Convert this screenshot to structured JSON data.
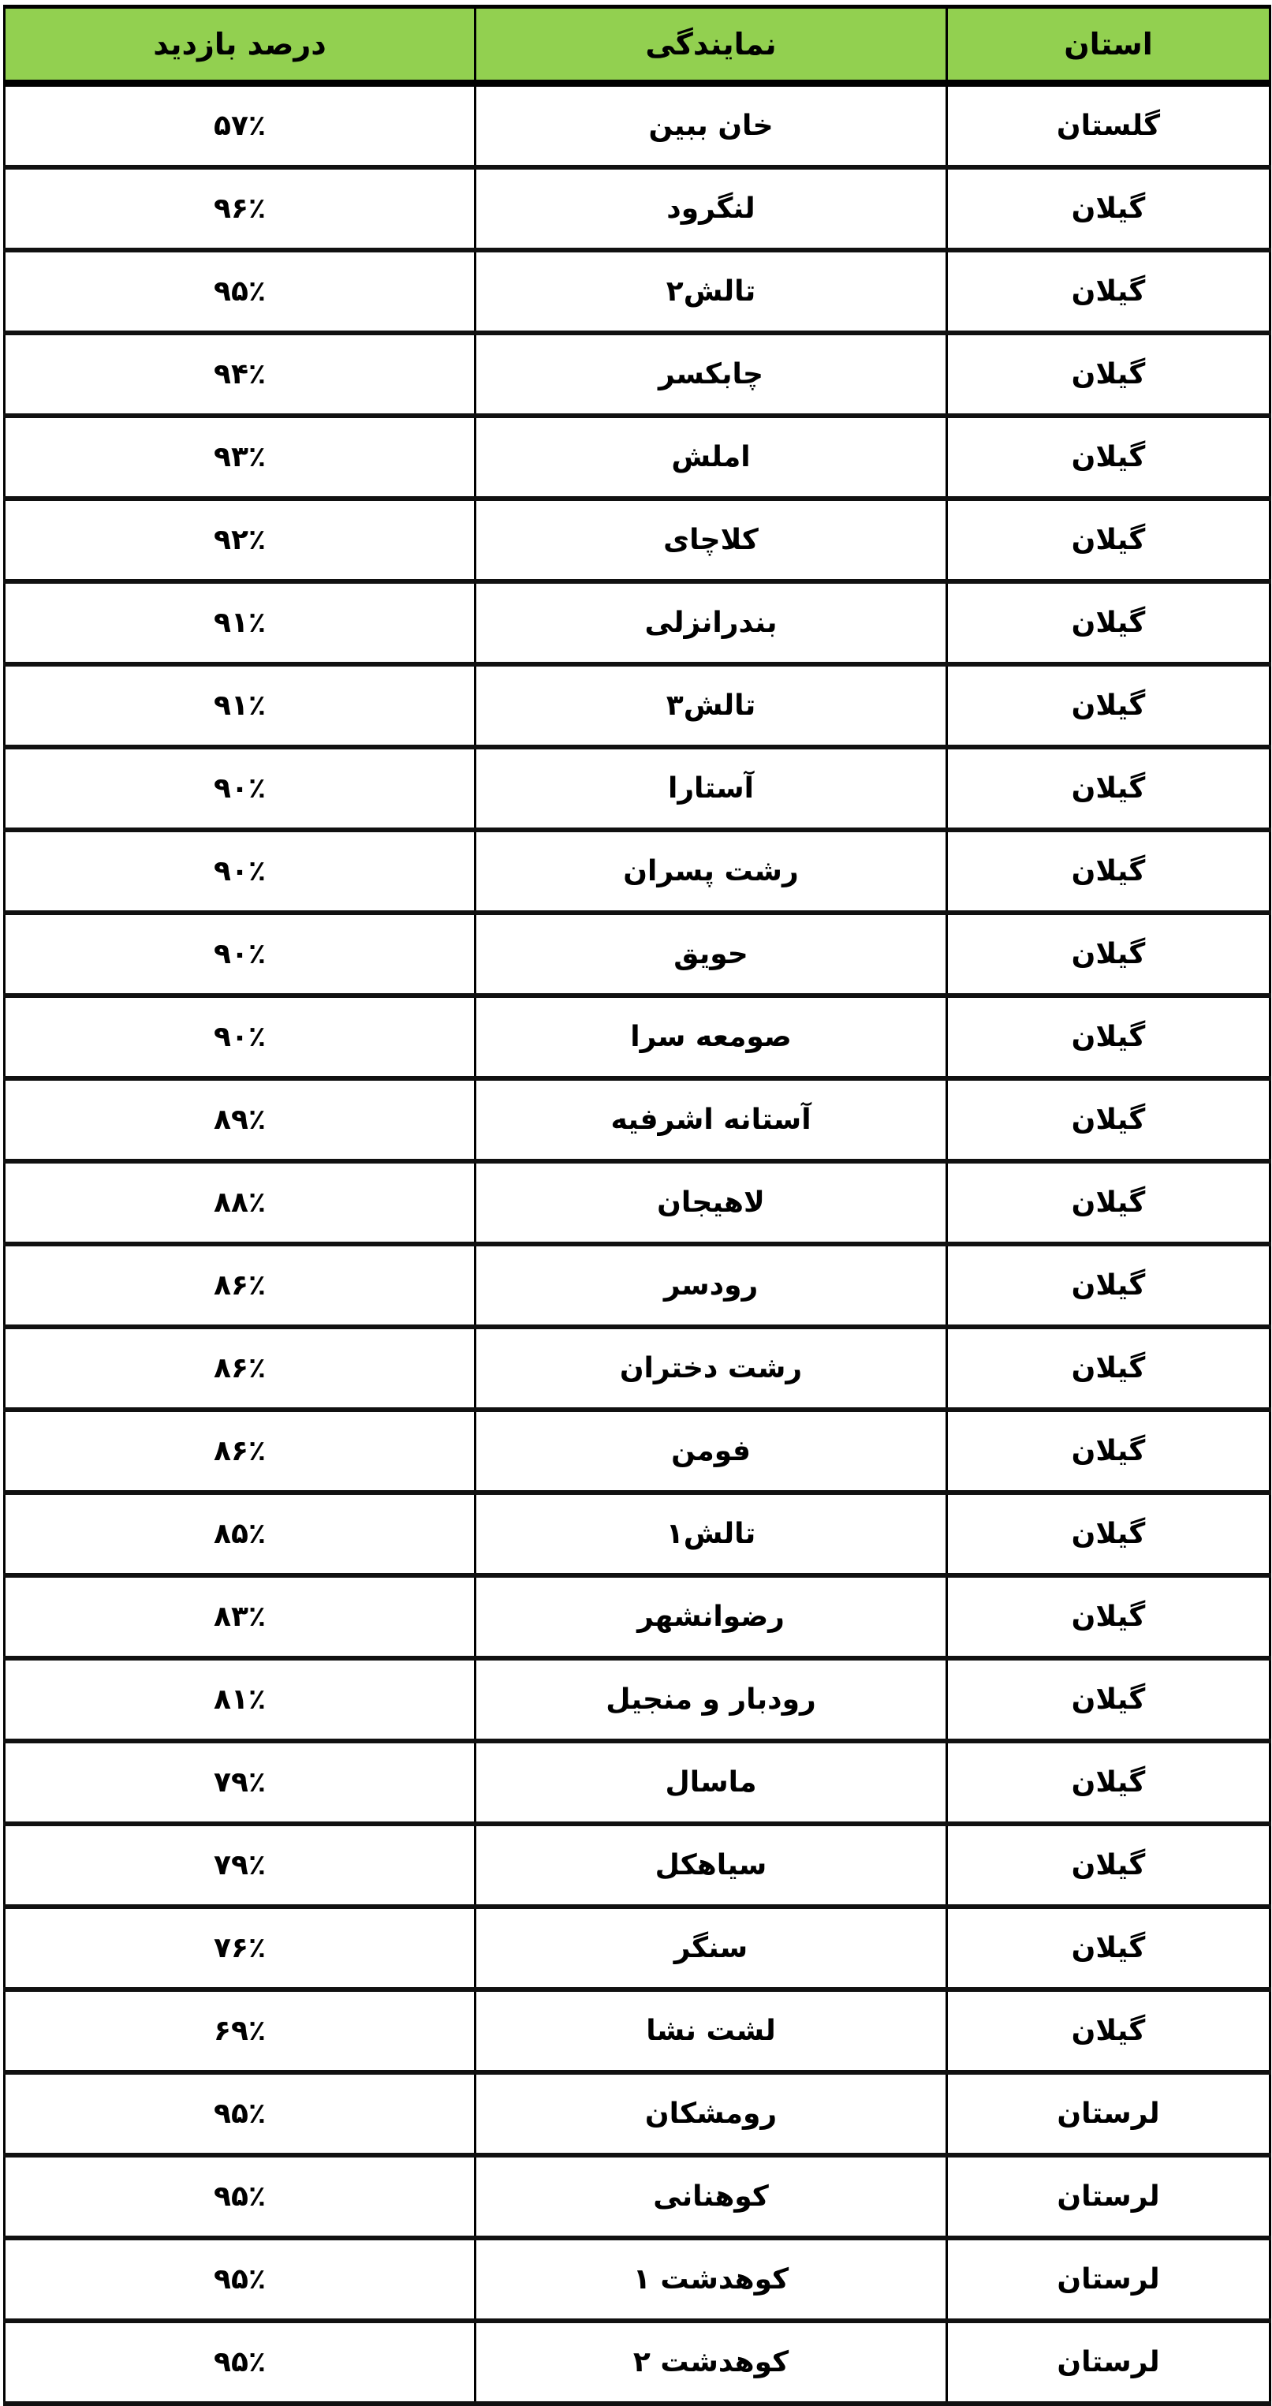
{
  "header_color": "#92d050",
  "headers": {
    "province": "استان",
    "constituency": "نمایندگی",
    "visit_percent": "درصد بازدید"
  },
  "rows": [
    {
      "province": "گلستان",
      "constituency": "خان ببین",
      "visit_percent": "۵۷٪"
    },
    {
      "province": "گیلان",
      "constituency": "لنگرود",
      "visit_percent": "۹۶٪"
    },
    {
      "province": "گیلان",
      "constituency": "تالش۲",
      "visit_percent": "۹۵٪"
    },
    {
      "province": "گیلان",
      "constituency": "چابکسر",
      "visit_percent": "۹۴٪"
    },
    {
      "province": "گیلان",
      "constituency": "املش",
      "visit_percent": "۹۳٪"
    },
    {
      "province": "گیلان",
      "constituency": "کلاچای",
      "visit_percent": "۹۲٪"
    },
    {
      "province": "گیلان",
      "constituency": "بندرانزلی",
      "visit_percent": "۹۱٪"
    },
    {
      "province": "گیلان",
      "constituency": "تالش۳",
      "visit_percent": "۹۱٪"
    },
    {
      "province": "گیلان",
      "constituency": "آستارا",
      "visit_percent": "۹۰٪"
    },
    {
      "province": "گیلان",
      "constituency": "رشت پسران",
      "visit_percent": "۹۰٪"
    },
    {
      "province": "گیلان",
      "constituency": "حویق",
      "visit_percent": "۹۰٪"
    },
    {
      "province": "گیلان",
      "constituency": "صومعه سرا",
      "visit_percent": "۹۰٪"
    },
    {
      "province": "گیلان",
      "constituency": "آستانه اشرفیه",
      "visit_percent": "۸۹٪"
    },
    {
      "province": "گیلان",
      "constituency": "لاهیجان",
      "visit_percent": "۸۸٪"
    },
    {
      "province": "گیلان",
      "constituency": "رودسر",
      "visit_percent": "۸۶٪"
    },
    {
      "province": "گیلان",
      "constituency": "رشت دختران",
      "visit_percent": "۸۶٪"
    },
    {
      "province": "گیلان",
      "constituency": "فومن",
      "visit_percent": "۸۶٪"
    },
    {
      "province": "گیلان",
      "constituency": "تالش۱",
      "visit_percent": "۸۵٪"
    },
    {
      "province": "گیلان",
      "constituency": "رضوانشهر",
      "visit_percent": "۸۳٪"
    },
    {
      "province": "گیلان",
      "constituency": "رودبار و منجیل",
      "visit_percent": "۸۱٪"
    },
    {
      "province": "گیلان",
      "constituency": "ماسال",
      "visit_percent": "۷۹٪"
    },
    {
      "province": "گیلان",
      "constituency": "سیاهکل",
      "visit_percent": "۷۹٪"
    },
    {
      "province": "گیلان",
      "constituency": "سنگر",
      "visit_percent": "۷۶٪"
    },
    {
      "province": "گیلان",
      "constituency": "لشت نشا",
      "visit_percent": "۶۹٪"
    },
    {
      "province": "لرستان",
      "constituency": "رومشکان",
      "visit_percent": "۹۵٪"
    },
    {
      "province": "لرستان",
      "constituency": "کوهنانی",
      "visit_percent": "۹۵٪"
    },
    {
      "province": "لرستان",
      "constituency": "کوهدشت ۱",
      "visit_percent": "۹۵٪"
    },
    {
      "province": "لرستان",
      "constituency": "کوهدشت ۲",
      "visit_percent": "۹۵٪"
    }
  ]
}
